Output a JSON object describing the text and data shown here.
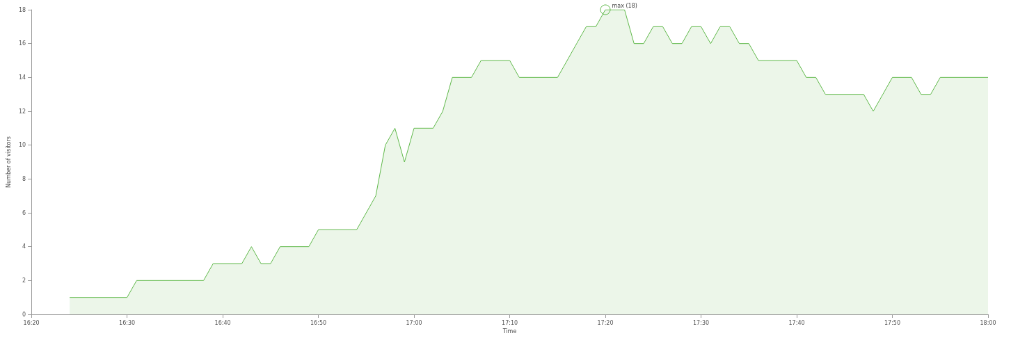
{
  "chart_data": {
    "type": "area",
    "xlabel": "Time",
    "ylabel": "Number of visitors",
    "marker": "none",
    "grid": false,
    "x": [
      16.4,
      16.5,
      16.5167,
      16.6333,
      16.65,
      16.7,
      16.7167,
      16.7333,
      16.75,
      16.7667,
      16.8167,
      16.8333,
      16.9,
      16.9167,
      16.9333,
      16.95,
      16.9667,
      16.9833,
      17,
      17.0333,
      17.05,
      17.0667,
      17.1,
      17.1167,
      17.1667,
      17.1833,
      17.25,
      17.2667,
      17.2833,
      17.3,
      17.3167,
      17.3333,
      17.3667,
      17.3833,
      17.4,
      17.4167,
      17.4333,
      17.45,
      17.4667,
      17.4833,
      17.5,
      17.5167,
      17.5333,
      17.55,
      17.5667,
      17.5833,
      17.6,
      17.6667,
      17.6833,
      17.7,
      17.7167,
      17.7833,
      17.8,
      17.8167,
      17.8333,
      17.8667,
      17.8833,
      17.9,
      17.9167,
      18
    ],
    "series": [
      {
        "color": "#5fb84a",
        "values": [
          1,
          1,
          2,
          2,
          3,
          3,
          4,
          3,
          3,
          4,
          4,
          5,
          5,
          6,
          7,
          10,
          11,
          9,
          11,
          11,
          12,
          14,
          14,
          15,
          15,
          14,
          14,
          15,
          16,
          17,
          17,
          18,
          18,
          16,
          16,
          17,
          17,
          16,
          16,
          17,
          17,
          16,
          17,
          17,
          16,
          16,
          15,
          15,
          14,
          14,
          13,
          13,
          12,
          13,
          14,
          14,
          13,
          13,
          14,
          14
        ]
      }
    ],
    "xlim": [
      16.3333,
      18
    ],
    "xticks": [
      {
        "value": 16.3333,
        "label": "16:20"
      },
      {
        "value": 16.5,
        "label": "16:30"
      },
      {
        "value": 16.6667,
        "label": "16:40"
      },
      {
        "value": 16.8333,
        "label": "16:50"
      },
      {
        "value": 17,
        "label": "17:00"
      },
      {
        "value": 17.1667,
        "label": "17:10"
      },
      {
        "value": 17.3333,
        "label": "17:20"
      },
      {
        "value": 17.5,
        "label": "17:30"
      },
      {
        "value": 17.6667,
        "label": "17:40"
      },
      {
        "value": 17.8333,
        "label": "17:50"
      },
      {
        "value": 18,
        "label": "18:00"
      }
    ],
    "ylim": [
      0,
      18
    ],
    "yticks": [
      0,
      2,
      4,
      6,
      8,
      10,
      12,
      14,
      16,
      18
    ],
    "annotations": [
      {
        "text": "max (18)",
        "x": 17.3333,
        "y": 18
      }
    ]
  }
}
